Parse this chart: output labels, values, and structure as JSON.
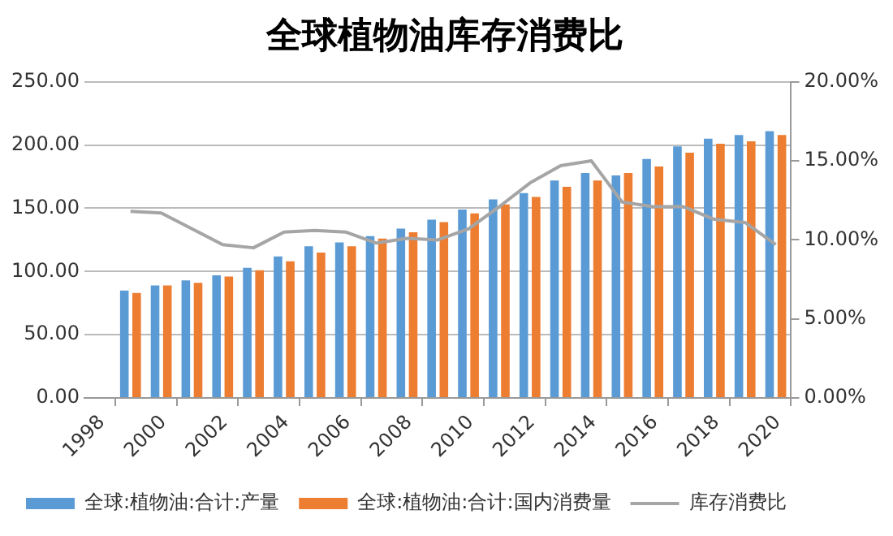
{
  "chart_data": {
    "type": "bar",
    "title": "全球植物油库存消费比",
    "x": [
      1999.5,
      2000.5,
      2001.5,
      2002.5,
      2003.5,
      2004.5,
      2005.5,
      2006.5,
      2007.5,
      2008.5,
      2009.5,
      2010.5,
      2011.5,
      2012.5,
      2013.5,
      2014.5,
      2015.5,
      2016.5,
      2017.5,
      2018.5,
      2019.5,
      2020.5
    ],
    "series": [
      {
        "name": "全球:植物油:合计:产量",
        "color": "#5b9bd5",
        "values": [
          85,
          89,
          93,
          97,
          103,
          112,
          120,
          123,
          128,
          134,
          141,
          149,
          157,
          162,
          172,
          178,
          176,
          189,
          199,
          205,
          208,
          211
        ]
      },
      {
        "name": "全球:植物油:合计:国内消费量",
        "color": "#ed7d31",
        "values": [
          83,
          89,
          91,
          96,
          101,
          108,
          115,
          120,
          126,
          131,
          139,
          146,
          153,
          159,
          167,
          172,
          178,
          183,
          194,
          201,
          203,
          208
        ]
      },
      {
        "name": "库存消费比",
        "type": "line",
        "axis": "y2",
        "color": "#a5a5a5",
        "values": [
          11.8,
          11.7,
          10.7,
          9.7,
          9.5,
          10.5,
          10.6,
          10.5,
          9.8,
          10.1,
          10.0,
          10.7,
          12.1,
          13.6,
          14.7,
          15.0,
          12.4,
          12.1,
          12.1,
          11.3,
          11.1,
          9.7
        ]
      }
    ],
    "xlim": [
      1998,
      2021
    ],
    "xticks": [
      1998,
      2000,
      2002,
      2004,
      2006,
      2008,
      2010,
      2012,
      2014,
      2016,
      2018,
      2020
    ],
    "ylim": [
      0,
      250
    ],
    "yticks": [
      {
        "value": 0,
        "label": "0.00"
      },
      {
        "value": 50,
        "label": "50.00"
      },
      {
        "value": 100,
        "label": "100.00"
      },
      {
        "value": 150,
        "label": "150.00"
      },
      {
        "value": 200,
        "label": "200.00"
      },
      {
        "value": 250,
        "label": "250.00"
      }
    ],
    "y2lim": [
      0,
      20
    ],
    "y2ticks": [
      {
        "value": 0,
        "label": "0.00%"
      },
      {
        "value": 5,
        "label": "5.00%"
      },
      {
        "value": 10,
        "label": "10.00%"
      },
      {
        "value": 15,
        "label": "15.00%"
      },
      {
        "value": 20,
        "label": "20.00%"
      }
    ],
    "grid": "y",
    "legend": "bottom",
    "marker": "none",
    "line_style": "solid"
  }
}
